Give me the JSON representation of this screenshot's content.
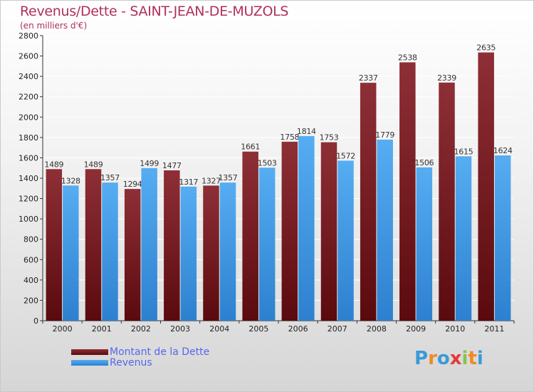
{
  "title": "Revenus/Dette - SAINT-JEAN-DE-MUZOLS",
  "subtitle": "(en milliers d'€)",
  "logo": {
    "text": "Proxiti",
    "letters": [
      "P",
      "r",
      "o",
      "x",
      "i",
      "t",
      "i"
    ],
    "colors": [
      "#3a9ad9",
      "#f08a24",
      "#3a9ad9",
      "#e53935",
      "#8bc34a",
      "#f08a24",
      "#3a9ad9"
    ]
  },
  "colors": {
    "dette": "#7a1f24",
    "revenus": "#3d9be9",
    "axis": "#333333",
    "grid": "#ffffff"
  },
  "chart_data": {
    "type": "bar",
    "categories": [
      "2000",
      "2001",
      "2002",
      "2003",
      "2004",
      "2005",
      "2006",
      "2007",
      "2008",
      "2009",
      "2010",
      "2011"
    ],
    "series": [
      {
        "name": "Montant de la Dette",
        "values": [
          1489,
          1489,
          1294,
          1477,
          1327,
          1661,
          1758,
          1753,
          2337,
          2538,
          2339,
          2635
        ]
      },
      {
        "name": "Revenus",
        "values": [
          1328,
          1357,
          1499,
          1317,
          1357,
          1503,
          1814,
          1572,
          1779,
          1506,
          1615,
          1624
        ]
      }
    ],
    "ylim": [
      0,
      2800
    ],
    "yticks": [
      0,
      200,
      400,
      600,
      800,
      1000,
      1200,
      1400,
      1600,
      1800,
      2000,
      2200,
      2400,
      2600,
      2800
    ],
    "grid": true,
    "legend": "bottom-left"
  }
}
